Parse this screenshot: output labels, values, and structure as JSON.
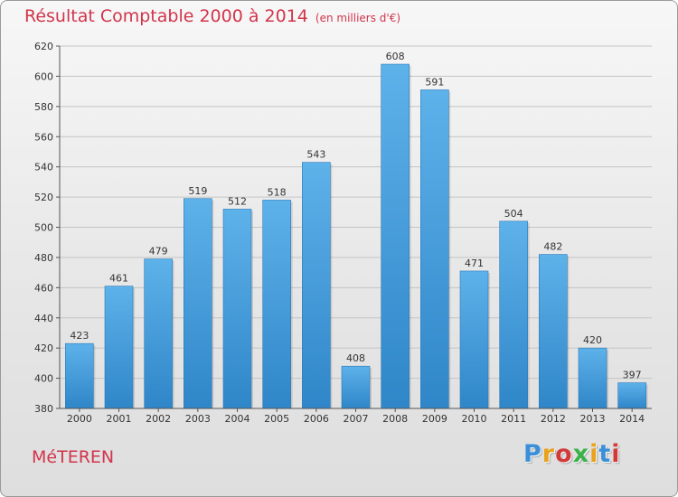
{
  "title": "Résultat Comptable 2000 à 2014",
  "unit_label": "(en milliers d'€)",
  "town": "MéTEREN",
  "logo": {
    "letters": [
      "P",
      "r",
      "o",
      "x",
      "i",
      "t",
      "i"
    ],
    "colors": [
      "#3a8fd8",
      "#e8a21c",
      "#d23a3a",
      "#3ab24a",
      "#e8a21c",
      "#3a8fd8",
      "#d23a3a"
    ]
  },
  "colors": {
    "bar_light": "#5eb2ea",
    "bar_dark": "#2f86c8",
    "title": "#d2344b"
  },
  "chart_data": {
    "type": "bar",
    "title": "Résultat Comptable 2000 à 2014",
    "xlabel": "",
    "ylabel": "",
    "categories": [
      "2000",
      "2001",
      "2002",
      "2003",
      "2004",
      "2005",
      "2006",
      "2007",
      "2008",
      "2009",
      "2010",
      "2011",
      "2012",
      "2013",
      "2014"
    ],
    "values": [
      423,
      461,
      479,
      519,
      512,
      518,
      543,
      408,
      608,
      591,
      471,
      504,
      482,
      420,
      397
    ],
    "ylim": [
      380,
      620
    ],
    "yticks": [
      380,
      400,
      420,
      440,
      460,
      480,
      500,
      520,
      540,
      560,
      580,
      600,
      620
    ],
    "grid": true
  }
}
